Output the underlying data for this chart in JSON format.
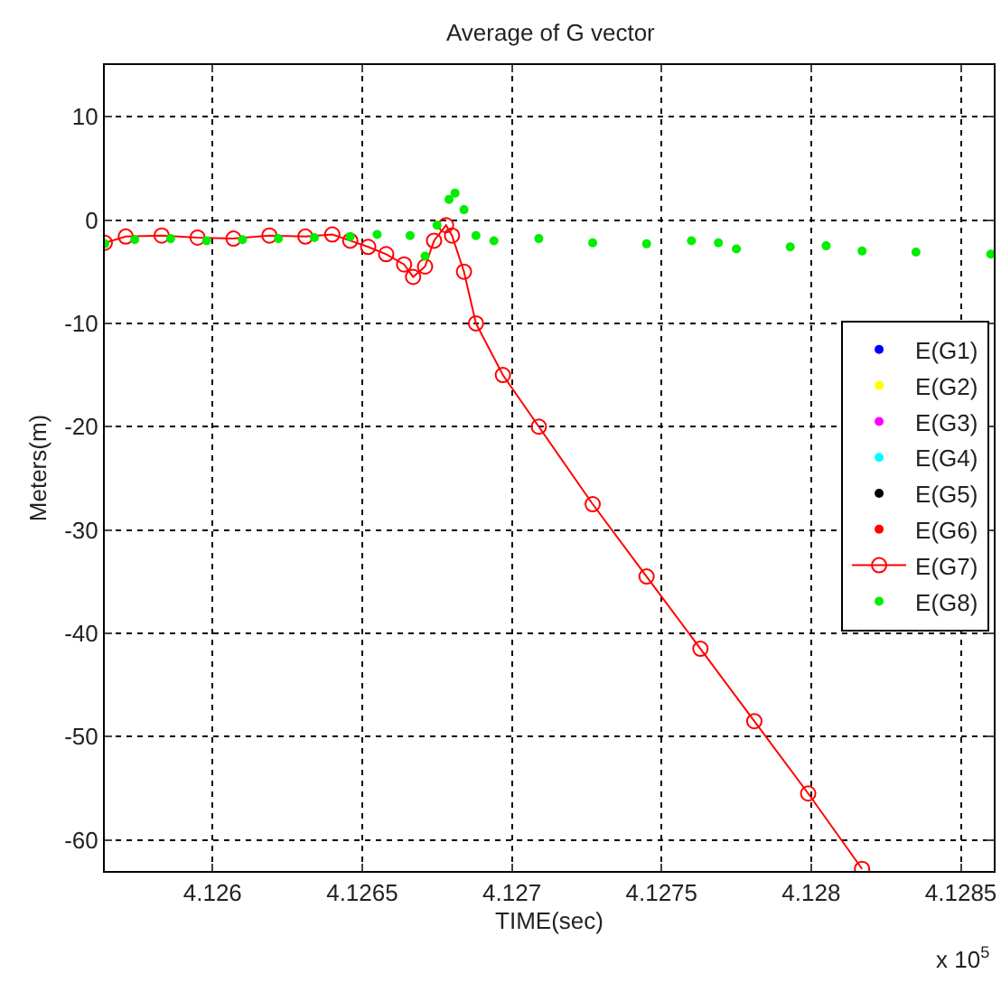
{
  "chart_data": {
    "type": "scatter",
    "title": "Average of G vector",
    "xlabel": "TIME(sec)",
    "ylabel": "Meters(m)",
    "annotations": [
      "x 10$^{5}$"
    ],
    "xlim": [
      4.12564,
      4.12861
    ],
    "xticks": [
      4.126,
      4.1265,
      4.127,
      4.1275,
      4.128,
      4.1285
    ],
    "ylim": [
      -63,
      15
    ],
    "yticks": [
      -60,
      -50,
      -40,
      -30,
      -20,
      -10,
      0,
      10
    ],
    "grid": true,
    "legend": "right",
    "marker": "circle",
    "series": [
      {
        "name": "E(G1)",
        "color": "#0000ff"
      },
      {
        "name": "E(G2)",
        "color": "#ffff00"
      },
      {
        "name": "E(G3)",
        "color": "#ff00ff"
      },
      {
        "name": "E(G4)",
        "color": "#00ffff"
      },
      {
        "name": "E(G5)",
        "color": "#000000"
      },
      {
        "name": "E(G6)",
        "color": "#ff0000"
      },
      {
        "name": "E(G7)",
        "color": "#ff0000",
        "type": "line",
        "line_style": "solid",
        "x": [
          4.12564,
          4.12571,
          4.12583,
          4.12595,
          4.12607,
          4.12619,
          4.12631,
          4.1264,
          4.12646,
          4.12652,
          4.12658,
          4.12664,
          4.12667,
          4.12671,
          4.12674,
          4.12678,
          4.1268,
          4.12684,
          4.12688,
          4.12697,
          4.12709,
          4.12727,
          4.12745,
          4.12763,
          4.12781,
          4.12799,
          4.12817
        ],
        "values": [
          -2.2,
          -1.6,
          -1.5,
          -1.7,
          -1.8,
          -1.5,
          -1.6,
          -1.4,
          -2,
          -2.6,
          -3.3,
          -4.3,
          -5.5,
          -4.5,
          -2,
          -0.5,
          -1.5,
          -5,
          -10,
          -15,
          -20,
          -27.5,
          -34.5,
          -41.5,
          -48.5,
          -55.5,
          -62.8
        ]
      },
      {
        "name": "E(G8)",
        "color": "#00ee00",
        "x": [
          4.12564,
          4.12574,
          4.12586,
          4.12598,
          4.1261,
          4.12622,
          4.12634,
          4.12646,
          4.12655,
          4.12666,
          4.12671,
          4.12675,
          4.12679,
          4.12681,
          4.12684,
          4.12688,
          4.12694,
          4.12709,
          4.12727,
          4.12745,
          4.1276,
          4.12769,
          4.12775,
          4.12793,
          4.12805,
          4.12817,
          4.12835,
          4.1286
        ],
        "values": [
          -2.3,
          -1.9,
          -1.8,
          -2,
          -1.9,
          -1.8,
          -1.7,
          -1.6,
          -1.4,
          -1.5,
          -3.5,
          -0.5,
          2,
          2.6,
          1,
          -1.5,
          -2,
          -1.8,
          -2.2,
          -2.3,
          -2,
          -2.2,
          -2.8,
          -2.6,
          -2.5,
          -3,
          -3.1,
          -3.3
        ]
      }
    ]
  }
}
